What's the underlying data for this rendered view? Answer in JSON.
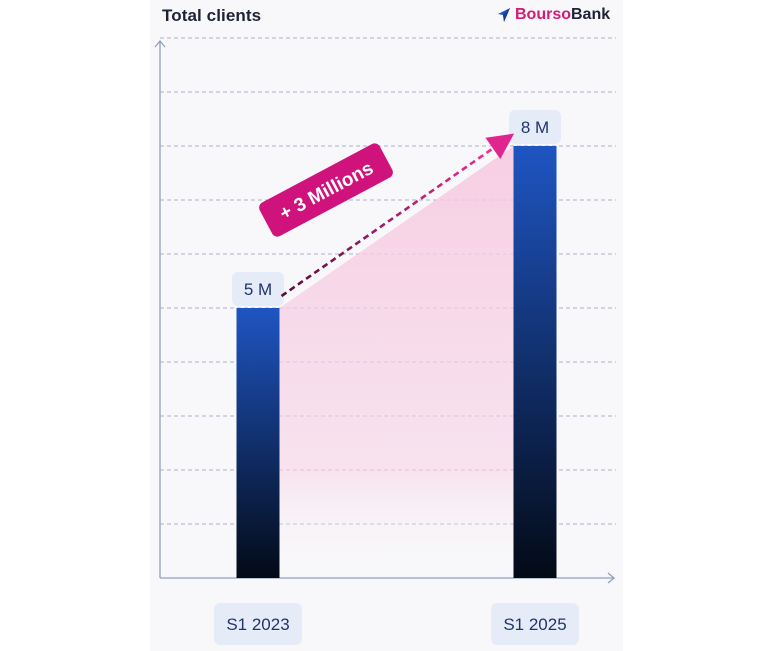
{
  "header": {
    "title": "Total clients",
    "brand_part1": "Bourso",
    "brand_part2": "Bank",
    "brand_icon": "arrow-logo-icon"
  },
  "chart_data": {
    "type": "bar",
    "title": "Total clients",
    "categories": [
      "S1 2023",
      "S1 2025"
    ],
    "values": [
      5,
      8
    ],
    "value_labels": [
      "5 M",
      "8 M"
    ],
    "unit": "M",
    "ylim": [
      0,
      10
    ],
    "grid": true,
    "annotation": {
      "text": "+ 3 Millions",
      "from": "S1 2023",
      "to": "S1 2025"
    }
  },
  "colors": {
    "bar_top": "#1f55c2",
    "bar_bottom": "#030a16",
    "accent_pink": "#d0127c",
    "label_bg": "#e6ecf7",
    "label_text": "#1f3470",
    "grid": "#a9b4c8",
    "axis": "#8fa0bf"
  }
}
